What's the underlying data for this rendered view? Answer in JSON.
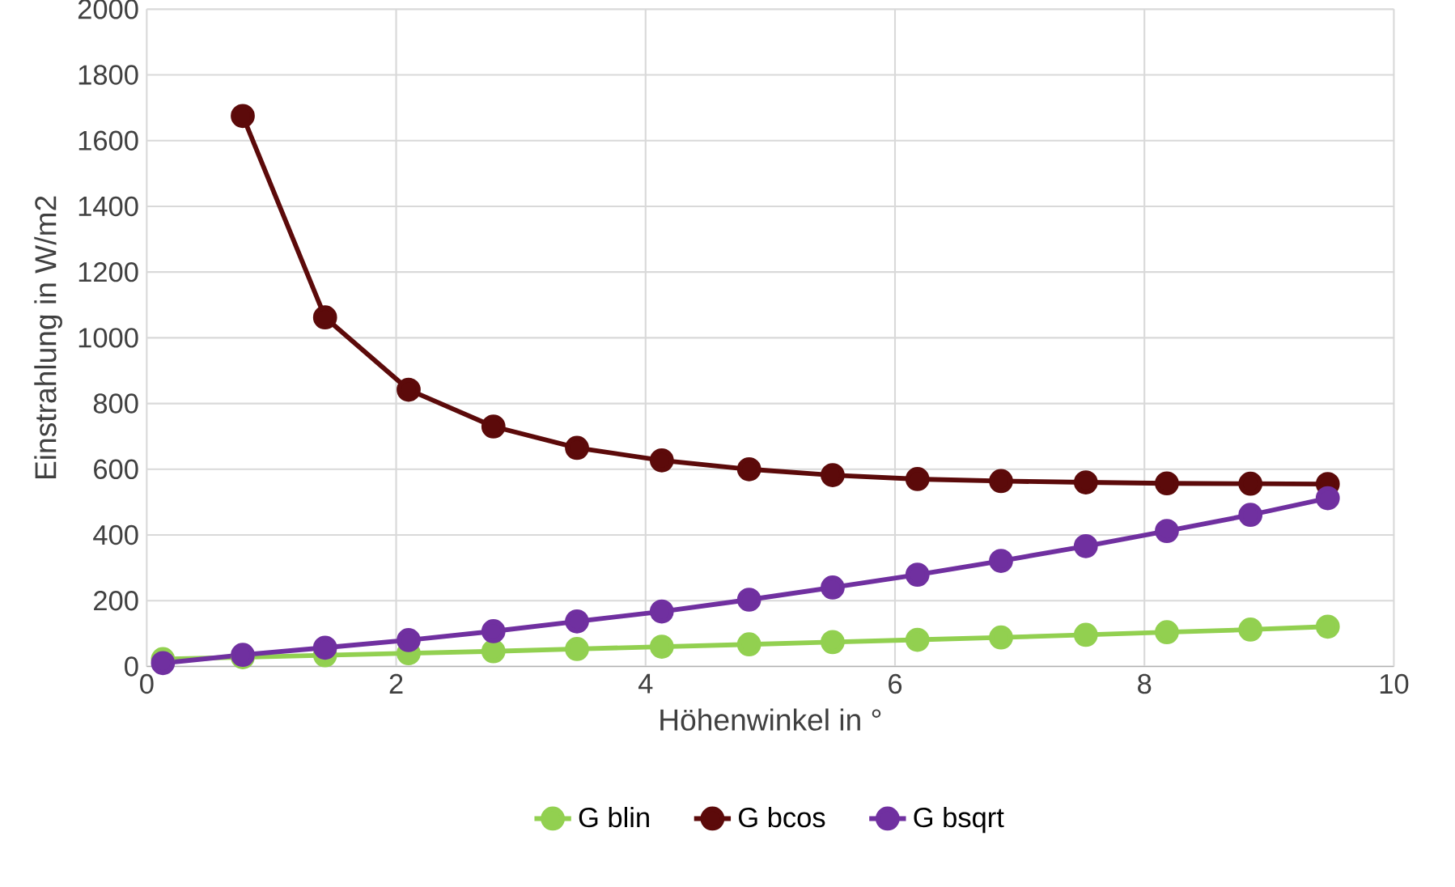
{
  "chart_data": {
    "type": "line",
    "xlabel": "Höhenwinkel in  °",
    "ylabel": "Einstrahlung in W/m2",
    "x": [
      0.13,
      0.77,
      1.43,
      2.1,
      2.78,
      3.45,
      4.13,
      4.83,
      5.5,
      6.18,
      6.85,
      7.53,
      8.18,
      8.85,
      9.47
    ],
    "series": [
      {
        "name": "G  blin",
        "color": "#92d050",
        "values": [
          22,
          28,
          34,
          40,
          46,
          53,
          60,
          67,
          74,
          81,
          88,
          96,
          104,
          112,
          121
        ]
      },
      {
        "name": "G  bcos",
        "color": "#5c0a0a",
        "values": [
          null,
          1675,
          1062,
          842,
          730,
          665,
          627,
          600,
          582,
          570,
          564,
          560,
          557,
          556,
          555
        ]
      },
      {
        "name": "G  bsqrt",
        "color": "#7030a0",
        "values": [
          10,
          35,
          57,
          80,
          107,
          137,
          167,
          203,
          240,
          279,
          321,
          366,
          412,
          461,
          512
        ]
      }
    ],
    "xlim": [
      0,
      10
    ],
    "ylim": [
      0,
      2000
    ],
    "xticks": [
      0,
      2,
      4,
      6,
      8,
      10
    ],
    "yticks": [
      0,
      200,
      400,
      600,
      800,
      1000,
      1200,
      1400,
      1600,
      1800,
      2000
    ],
    "grid": true,
    "legend": "bottom",
    "marker": "circle",
    "line_style": "solid"
  }
}
